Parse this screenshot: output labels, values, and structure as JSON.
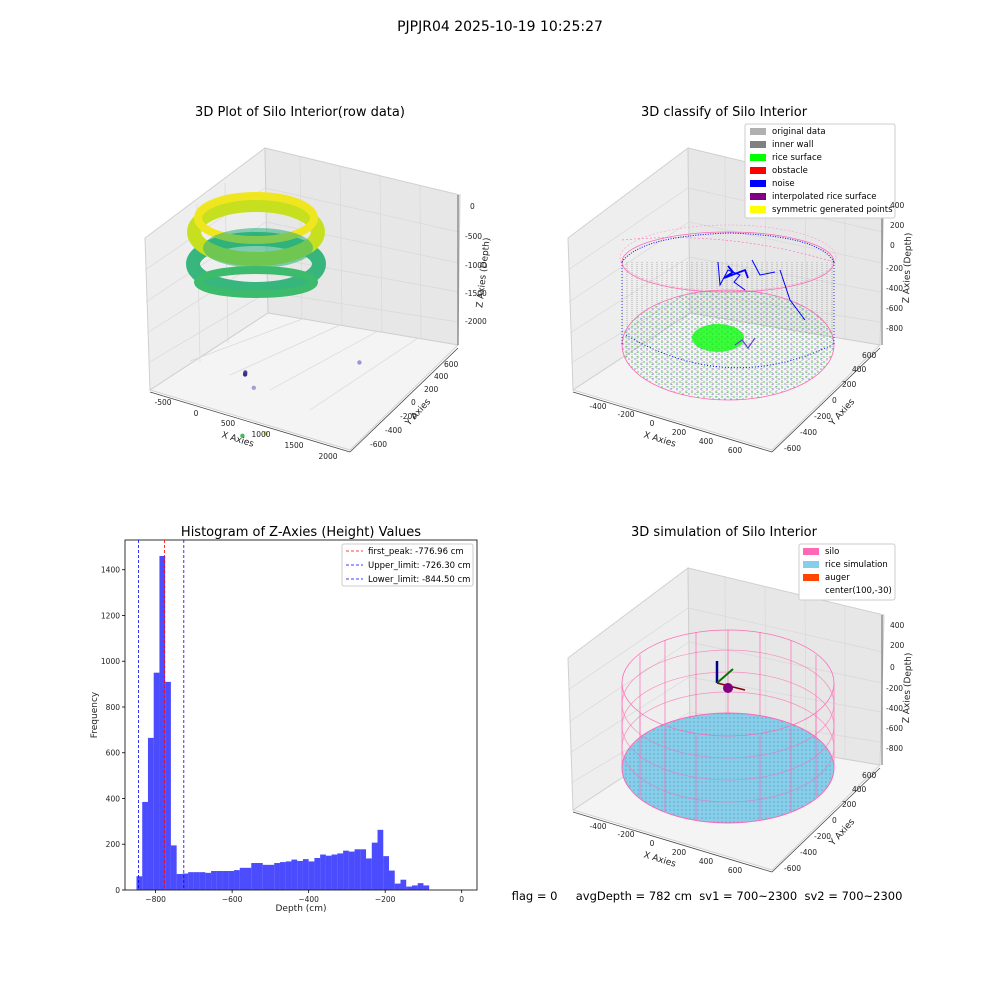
{
  "suptitle": "PJPJR04 2025-10-19 10:25:27",
  "status_text": "flag = 0     avgDepth = 782 cm  sv1 = 700~2300  sv2 = 700~2300",
  "colors": {
    "grey_orig": "#b0b0b0",
    "inner_wall": "#808080",
    "rice_surface": "#00ff00",
    "obstacle": "#ff0000",
    "noise": "#0000ff",
    "interp": "#800080",
    "sym": "#ffff00",
    "silo": "#ff69b4",
    "rice_sim": "#87ceeb",
    "auger": "#ff4500",
    "hist_bar": "#0000ff",
    "peak_line": "#ff0000",
    "limit_line": "#0000ff"
  },
  "chart_data": [
    {
      "type": "scatter3d",
      "title": "3D Plot of Silo Interior(row data)",
      "xlabel": "X Axies",
      "ylabel": "Y Axies",
      "zlabel": "Z Axies (Depth)",
      "x_ticks": [
        "-500",
        "0",
        "500",
        "1000",
        "1500",
        "2000"
      ],
      "y_ticks": [
        "-600",
        "-400",
        "-200",
        "0",
        "200",
        "400",
        "600",
        "800"
      ],
      "z_ticks": [
        "0",
        "-500",
        "-1000",
        "-1500",
        "-2000"
      ],
      "outlier_points": [
        {
          "x": 850,
          "y": 300,
          "z": -700
        },
        {
          "x": 800,
          "y": -100,
          "z": -1050
        },
        {
          "x": 1050,
          "y": -200,
          "z": -1650
        },
        {
          "x": 1900,
          "y": 800,
          "z": -1100
        },
        {
          "x": 1150,
          "y": -500,
          "z": -2100
        },
        {
          "x": 1300,
          "y": -700,
          "z": -2300
        }
      ]
    },
    {
      "type": "scatter3d",
      "title": "3D classify of Silo Interior",
      "xlabel": "X Axies",
      "ylabel": "Y Axies",
      "zlabel": "Z Axies (Depth)",
      "x_ticks": [
        "-400",
        "-200",
        "0",
        "200",
        "400",
        "600"
      ],
      "y_ticks": [
        "-600",
        "-400",
        "-200",
        "0",
        "200",
        "400",
        "600"
      ],
      "z_ticks": [
        "400",
        "200",
        "0",
        "-200",
        "-400",
        "-600",
        "-800"
      ],
      "legend": [
        "original data",
        "inner wall",
        "rice surface",
        "obstacle",
        "noise",
        "interpolated rice surface",
        "symmetric generated points"
      ]
    },
    {
      "type": "bar",
      "title": "Histogram of Z-Axies (Height) Values",
      "xlabel": "Depth (cm)",
      "ylabel": "Frequency",
      "xlim": [
        -880,
        40
      ],
      "ylim": [
        0,
        1530
      ],
      "bin_width": 15,
      "bins_start": [
        -850,
        -835,
        -820,
        -805,
        -790,
        -775,
        -760,
        -745,
        -730,
        -715,
        -700,
        -685,
        -670,
        -655,
        -640,
        -625,
        -610,
        -595,
        -580,
        -565,
        -550,
        -535,
        -520,
        -505,
        -490,
        -475,
        -460,
        -445,
        -430,
        -415,
        -400,
        -385,
        -370,
        -355,
        -340,
        -325,
        -310,
        -295,
        -280,
        -265,
        -250,
        -235,
        -220,
        -205,
        -190,
        -175,
        -160,
        -145,
        -130,
        -115,
        -100,
        -85,
        -70,
        -55,
        -40,
        -25,
        -10
      ],
      "values": [
        60,
        385,
        665,
        950,
        1460,
        910,
        195,
        70,
        72,
        78,
        78,
        78,
        75,
        83,
        83,
        83,
        83,
        87,
        97,
        97,
        118,
        118,
        110,
        110,
        118,
        122,
        125,
        133,
        127,
        135,
        125,
        140,
        155,
        150,
        155,
        160,
        172,
        168,
        178,
        178,
        138,
        207,
        263,
        148,
        85,
        28,
        45,
        15,
        20,
        30,
        20,
        0,
        0,
        0,
        0,
        0,
        0
      ],
      "x_ticks": [
        -800,
        -600,
        -400,
        -200,
        0
      ],
      "y_ticks": [
        0,
        200,
        400,
        600,
        800,
        1000,
        1200,
        1400
      ],
      "vlines": [
        {
          "label": "first_peak: -776.96 cm",
          "x": -776.96,
          "color": "#ff0000"
        },
        {
          "label": "Upper_limit: -726.30 cm",
          "x": -726.3,
          "color": "#0000ff"
        },
        {
          "label": "Lower_limit: -844.50 cm",
          "x": -844.5,
          "color": "#0000ff"
        }
      ]
    },
    {
      "type": "surface3d",
      "title": "3D simulation of Silo Interior",
      "xlabel": "X Axies",
      "ylabel": "Y Axies",
      "zlabel": "Z Axies (Depth)",
      "x_ticks": [
        "-400",
        "-200",
        "0",
        "200",
        "400",
        "600"
      ],
      "y_ticks": [
        "-600",
        "-400",
        "-200",
        "0",
        "200",
        "400",
        "600"
      ],
      "z_ticks": [
        "400",
        "200",
        "0",
        "-200",
        "-400",
        "-600",
        "-800"
      ],
      "legend": [
        "silo",
        "rice simulation",
        "auger",
        "center(100,-30)"
      ]
    }
  ]
}
